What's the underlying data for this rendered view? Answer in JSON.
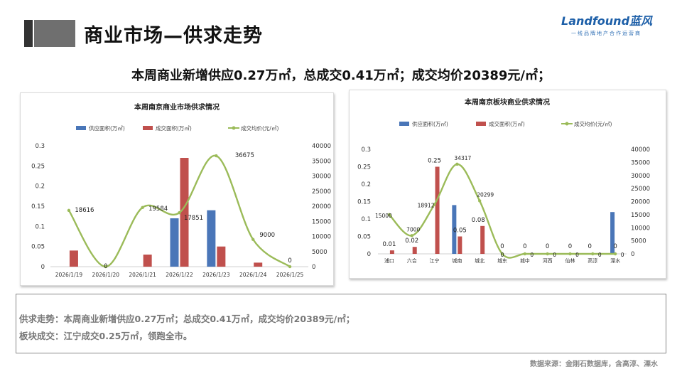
{
  "header": {
    "title": "商业市场—供求走势",
    "logo_main": "Landfound蓝风",
    "logo_sub": "一线品牌地产合作运营商"
  },
  "headline": "本周商业新增供应0.27万㎡，总成交0.41万㎡；成交均价20389元/㎡；",
  "summary": {
    "line1": "供求走势：本周商业新增供应0.27万㎡；总成交0.41万㎡，成交均价20389元/㎡；",
    "line2": "板块成交：江宁成交0.25万㎡，领跑全市。"
  },
  "source": "数据来源：金刚石数据库，含高淳、溧水",
  "colors": {
    "supply": "#4a76b8",
    "deal": "#c0504d",
    "price": "#9bbb59"
  },
  "chart_data": [
    {
      "type": "bar",
      "title": "本周南京商业市场供求情况",
      "legend": [
        "供应面积(万㎡)",
        "成交面积(万㎡)",
        "成交均价(元/㎡)"
      ],
      "legend_position": "top",
      "categories": [
        "2026/1/19",
        "2026/1/20",
        "2026/1/21",
        "2026/1/22",
        "2026/1/23",
        "2026/1/24",
        "2026/1/25"
      ],
      "series": [
        {
          "name": "供应面积(万㎡)",
          "type": "bar",
          "axis": "left",
          "values": [
            0,
            0,
            0,
            0.12,
            0.14,
            0,
            0
          ]
        },
        {
          "name": "成交面积(万㎡)",
          "type": "bar",
          "axis": "left",
          "values": [
            0.04,
            0,
            0.03,
            0.27,
            0.05,
            0.01,
            0
          ]
        },
        {
          "name": "成交均价(元/㎡)",
          "type": "line",
          "axis": "right",
          "smooth": true,
          "values": [
            18616,
            0,
            19584,
            17851,
            36675,
            9000,
            0
          ]
        }
      ],
      "price_labels": [
        "18616",
        "0",
        "19584",
        "17851",
        "36675",
        "9000",
        "0"
      ],
      "left_ticks": [
        "0",
        "0.05",
        "0.1",
        "0.15",
        "0.2",
        "0.25",
        "0.3"
      ],
      "right_ticks": [
        "0",
        "5000",
        "10000",
        "15000",
        "20000",
        "25000",
        "30000",
        "35000",
        "40000"
      ],
      "ylim_left": [
        0,
        0.3
      ],
      "ylim_right": [
        0,
        40000
      ],
      "grid": false
    },
    {
      "type": "bar",
      "title": "本周南京板块商业供求情况",
      "legend": [
        "供应面积(万㎡)",
        "成交面积(万㎡)",
        "成交均价(元/㎡)"
      ],
      "legend_position": "top",
      "categories": [
        "浦口",
        "六合",
        "江宁",
        "城南",
        "城北",
        "城东",
        "城中",
        "河西",
        "仙林",
        "高淳",
        "溧水"
      ],
      "series": [
        {
          "name": "供应面积(万㎡)",
          "type": "bar",
          "axis": "left",
          "values": [
            0,
            0,
            0,
            0.14,
            0,
            0,
            0,
            0,
            0,
            0,
            0.12
          ]
        },
        {
          "name": "成交面积(万㎡)",
          "type": "bar",
          "axis": "left",
          "values": [
            0.01,
            0.02,
            0.25,
            0.05,
            0.08,
            0,
            0,
            0,
            0,
            0,
            0
          ]
        },
        {
          "name": "成交均价(元/㎡)",
          "type": "line",
          "axis": "right",
          "smooth": true,
          "values": [
            15000,
            7000,
            18912,
            34317,
            20299,
            0,
            0,
            0,
            0,
            0,
            0
          ]
        }
      ],
      "deal_labels": [
        "0.01",
        "0.02",
        "0.25",
        "0.05",
        "0.08",
        "0",
        "0",
        "0",
        "0",
        "0",
        "0"
      ],
      "price_labels": [
        "15000",
        "7000",
        "18912",
        "34317",
        "20299",
        "0",
        "0",
        "0",
        "0",
        "0",
        "0"
      ],
      "left_ticks": [
        "0",
        "0.05",
        "0.1",
        "0.15",
        "0.2",
        "0.25",
        "0.3"
      ],
      "right_ticks": [
        "0",
        "5000",
        "10000",
        "15000",
        "20000",
        "25000",
        "30000",
        "35000",
        "40000"
      ],
      "ylim_left": [
        0,
        0.3
      ],
      "ylim_right": [
        0,
        40000
      ],
      "grid": false
    }
  ]
}
